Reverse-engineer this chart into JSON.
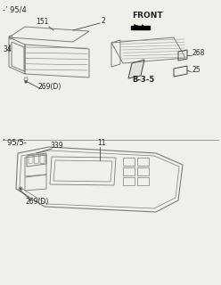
{
  "bg_color": "#f0f0eb",
  "line_color": "#7a7a7a",
  "dark_color": "#444444",
  "text_color": "#222222",
  "title1": "-’ 95/4",
  "title2": "’ 95/5-",
  "label_front": "FRONT",
  "label_2": "2",
  "label_11": "11",
  "label_25": "25",
  "label_34": "34",
  "label_151": "151",
  "label_268": "268",
  "label_269D1": "269(D)",
  "label_269D2": "269(D)",
  "label_339": "339",
  "label_B35": "B-3-5"
}
